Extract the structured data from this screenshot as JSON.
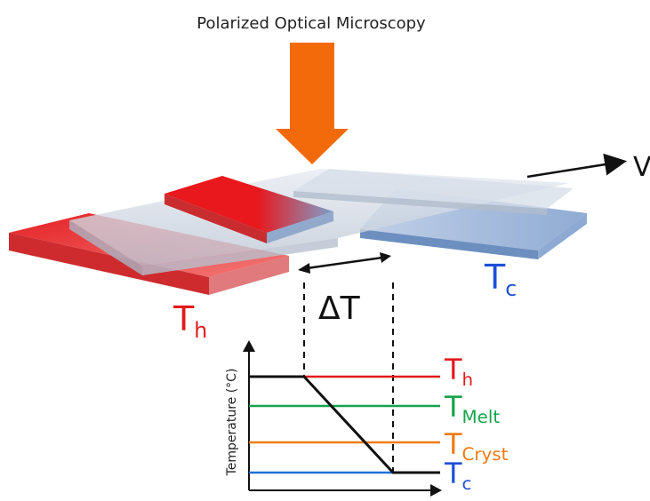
{
  "header": {
    "title": "Polarized Optical Microscopy"
  },
  "velocity_label": "V",
  "hot_zone": {
    "symbol": "T",
    "subscript": "h"
  },
  "cold_zone": {
    "symbol": "T",
    "subscript": "c"
  },
  "gradient_label": "ΔT",
  "graph": {
    "ylabel": "Temperature (°C)",
    "lines": [
      {
        "symbol": "T",
        "subscript": "h",
        "color": "#e31a1c"
      },
      {
        "symbol": "T",
        "subscript": "Melt",
        "color": "#16a34a"
      },
      {
        "symbol": "T",
        "subscript": "Cryst",
        "color": "#f07a12"
      },
      {
        "symbol": "T",
        "subscript": "c",
        "color": "#1f4fd6"
      }
    ]
  },
  "colors": {
    "hot": "#e31a1c",
    "cold": "#1f4fd6",
    "arrow": "#f36a0a"
  }
}
